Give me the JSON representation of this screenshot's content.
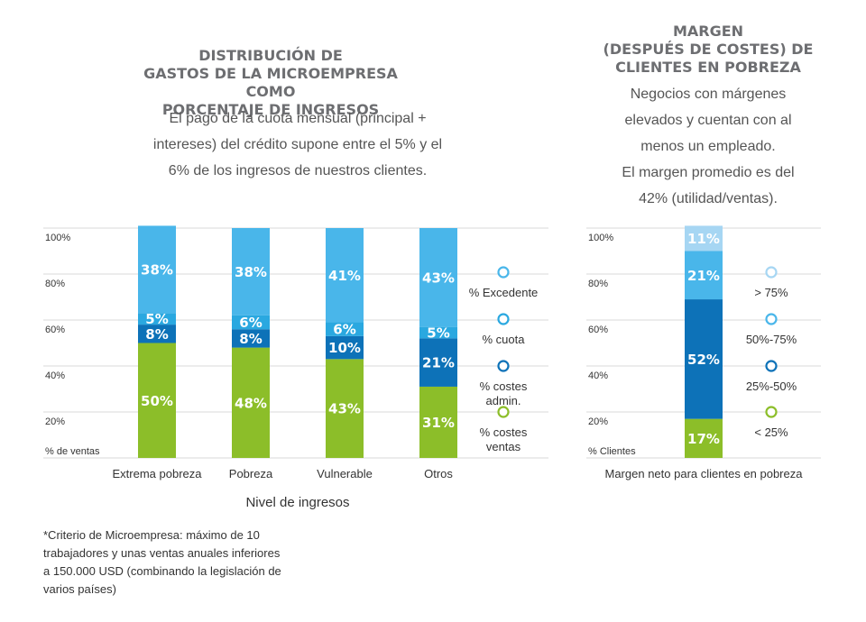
{
  "left_title": "DISTRIBUCIÓN DE\nGASTOS DE LA MICROEMPRESA COMO\nPORCENTAJE DE INGRESOS",
  "left_subtitle": "El pago de la cuota mensual (principal +\nintereses) del crédito supone entre el 5% y el\n6% de los ingresos de nuestros clientes.",
  "right_title": "MARGEN\n(DESPUÉS DE COSTES) DE\nCLIENTES EN POBREZA",
  "right_subtitle": "Negocios con márgenes\nelevados y cuentan con al\nmenos un empleado.\nEl margen promedio es del\n42% (utilidad/ventas).",
  "footnote": "*Criterio de Microempresa: máximo de 10 trabajadores y unas ventas anuales inferiores a 150.000 USD (combinando la legislación de varios países)",
  "chart_data": [
    {
      "type": "bar",
      "stacked": true,
      "categories": [
        "Extrema pobreza",
        "Pobreza",
        "Vulnerable",
        "Otros"
      ],
      "series": [
        {
          "name": "% costes ventas",
          "values": [
            50,
            48,
            43,
            31
          ],
          "color": "#8cbe29",
          "legend": [
            "% costes",
            "ventas"
          ]
        },
        {
          "name": "% costes admin.",
          "values": [
            8,
            8,
            10,
            21
          ],
          "color": "#0d72b8",
          "legend": [
            "% costes",
            "admin."
          ]
        },
        {
          "name": "% cuota",
          "values": [
            5,
            6,
            6,
            5
          ],
          "color": "#2aa8e0",
          "legend": [
            "% cuota"
          ]
        },
        {
          "name": "% Excedente",
          "values": [
            38,
            38,
            41,
            43
          ],
          "color": "#49b6ea",
          "legend": [
            "% Excedente"
          ]
        }
      ],
      "data_labels": [
        [
          "50%",
          "48%",
          "43%",
          "31%"
        ],
        [
          "8%",
          "8%",
          "10%",
          "21%"
        ],
        [
          "5%",
          "6%",
          "6%",
          "5%"
        ],
        [
          "38%",
          "38%",
          "41%",
          "43%"
        ]
      ],
      "yticks": [
        "100%",
        "80%",
        "60%",
        "40%",
        "20%"
      ],
      "ylabel": "% de ventas",
      "xlabel": "Nivel de ingresos",
      "ylim": [
        0,
        100
      ],
      "grid": true,
      "legend_position": "right"
    },
    {
      "type": "bar",
      "stacked": true,
      "categories": [
        ""
      ],
      "series": [
        {
          "name": "< 25%",
          "values": [
            17
          ],
          "color": "#8cbe29"
        },
        {
          "name": "25%-50%",
          "values": [
            52
          ],
          "color": "#0d72b8"
        },
        {
          "name": "50%-75%",
          "values": [
            21
          ],
          "color": "#49b6ea"
        },
        {
          "name": "> 75%",
          "values": [
            11
          ],
          "color": "#a6d6f3"
        }
      ],
      "data_labels": [
        [
          "17%"
        ],
        [
          "52%"
        ],
        [
          "21%"
        ],
        [
          "11%"
        ]
      ],
      "yticks": [
        "100%",
        "80%",
        "60%",
        "40%",
        "20%"
      ],
      "ylabel": "% Clientes",
      "xlabel": "Margen neto para clientes en pobreza",
      "ylim": [
        0,
        100
      ],
      "grid": true,
      "legend_position": "right"
    }
  ]
}
